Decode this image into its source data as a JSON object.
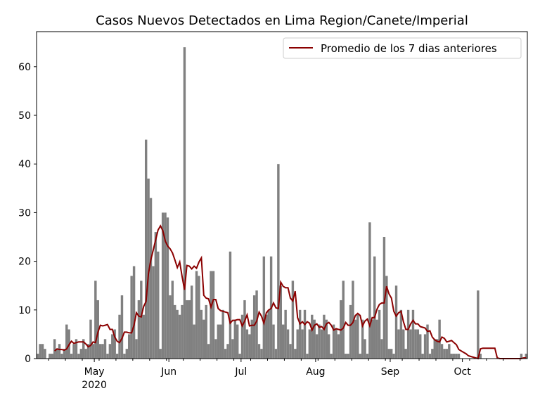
{
  "chart_data": {
    "type": "bar",
    "title": "Casos Nuevos Detectados en Lima Region/Canete/Imperial",
    "xlabel": "",
    "ylabel": "",
    "start_date": "2020-04-07",
    "ylim": [
      0,
      67.2
    ],
    "yticks": [
      0,
      10,
      20,
      30,
      40,
      50,
      60
    ],
    "xticks": [
      {
        "label": "May",
        "sublabel": "2020",
        "day": 24
      },
      {
        "label": "Jun",
        "sublabel": "",
        "day": 55
      },
      {
        "label": "Jul",
        "sublabel": "",
        "day": 85
      },
      {
        "label": "Aug",
        "sublabel": "",
        "day": 116
      },
      {
        "label": "Sep",
        "sublabel": "",
        "day": 147
      },
      {
        "label": "Oct",
        "sublabel": "",
        "day": 177
      }
    ],
    "bar_color": "#808080",
    "line_color": "#8b0000",
    "legend": {
      "label": "Promedio de los 7 dias anteriores",
      "placement": "top-right"
    },
    "values": [
      1,
      3,
      3,
      2,
      0,
      1,
      1,
      4,
      2,
      3,
      1,
      2,
      7,
      6,
      1,
      3,
      4,
      1,
      2,
      4,
      2,
      3,
      8,
      3,
      16,
      12,
      3,
      3,
      4,
      1,
      3,
      5,
      6,
      1,
      9,
      13,
      1,
      2,
      5,
      17,
      19,
      4,
      12,
      16,
      9,
      45,
      37,
      33,
      19,
      26,
      22,
      2,
      30,
      30,
      29,
      13,
      16,
      11,
      10,
      9,
      11,
      64,
      12,
      12,
      15,
      7,
      18,
      17,
      10,
      8,
      11,
      3,
      18,
      18,
      4,
      7,
      7,
      10,
      2,
      3,
      22,
      4,
      8,
      7,
      1,
      9,
      12,
      6,
      5,
      8,
      13,
      14,
      3,
      2,
      21,
      9,
      10,
      21,
      7,
      2,
      40,
      15,
      7,
      10,
      6,
      3,
      16,
      2,
      6,
      10,
      6,
      10,
      1,
      6,
      9,
      8,
      5,
      7,
      6,
      9,
      8,
      5,
      1,
      7,
      6,
      5,
      12,
      16,
      1,
      1,
      11,
      16,
      8,
      9,
      1,
      8,
      4,
      1,
      28,
      8,
      21,
      8,
      10,
      4,
      25,
      17,
      2,
      2,
      1,
      15,
      6,
      10,
      6,
      2,
      10,
      6,
      10,
      6,
      6,
      5,
      1,
      5,
      7,
      1,
      2,
      4,
      4,
      8,
      3,
      2,
      2,
      3,
      1,
      1,
      1,
      1,
      0,
      0,
      0,
      0,
      0,
      0,
      0,
      14,
      1,
      0,
      0,
      0,
      0,
      0,
      0,
      0,
      0,
      0,
      0,
      0,
      0,
      0,
      0,
      0,
      0,
      1,
      0,
      1
    ]
  }
}
